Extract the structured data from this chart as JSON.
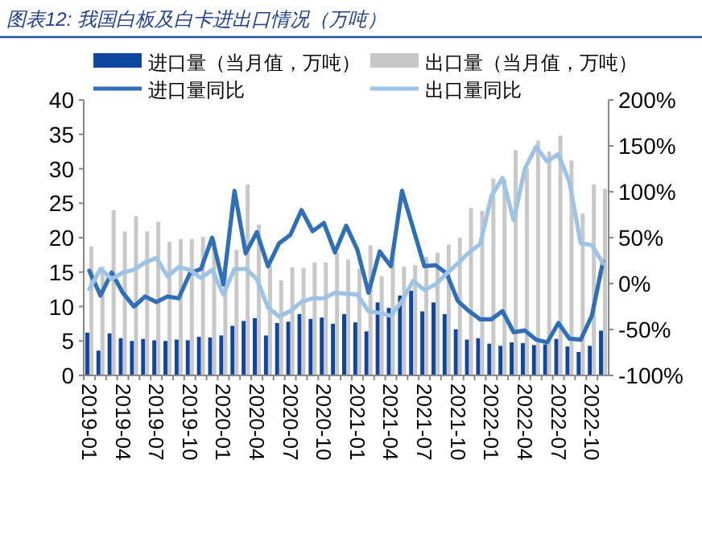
{
  "chart_data": {
    "type": "bar",
    "title": "图表12: 我国白板及白卡进出口情况（万吨）",
    "categories": [
      "2019-01",
      null,
      null,
      "2019-04",
      null,
      null,
      "2019-07",
      null,
      null,
      "2019-10",
      null,
      null,
      "2020-01",
      null,
      null,
      "2020-04",
      null,
      null,
      "2020-07",
      null,
      null,
      "2020-10",
      null,
      null,
      "2021-01",
      null,
      null,
      "2021-04",
      null,
      null,
      "2021-07",
      null,
      null,
      "2021-10",
      null,
      null,
      "2022-01",
      null,
      null,
      "2022-04",
      null,
      null,
      "2022-07",
      null,
      null,
      "2022-10",
      null
    ],
    "series": [
      {
        "name": "进口量（当月值，万吨）",
        "color": "#0f46a0",
        "values": [
          6.2,
          3.6,
          6.1,
          5.4,
          5.0,
          5.3,
          5.1,
          5.0,
          5.2,
          5.1,
          5.6,
          5.5,
          5.8,
          7.2,
          7.9,
          8.3,
          5.8,
          7.6,
          7.8,
          8.9,
          8.2,
          8.4,
          7.5,
          8.9,
          7.7,
          6.4,
          10.6,
          9.8,
          11.6,
          12.3,
          9.3,
          10.6,
          8.9,
          6.7,
          5.2,
          5.4,
          4.6,
          4.3,
          4.8,
          4.7,
          4.4,
          4.5,
          5.3,
          4.2,
          3.4,
          4.3,
          6.5
        ]
      },
      {
        "name": "出口量（当月值，万吨）",
        "color": "#c8c8c8",
        "values": [
          18.7,
          15.8,
          24.0,
          20.9,
          23.1,
          20.9,
          22.3,
          19.4,
          19.8,
          19.8,
          20.1,
          19.7,
          15.0,
          18.2,
          27.7,
          21.9,
          16.0,
          13.8,
          15.7,
          15.6,
          16.4,
          16.4,
          17.8,
          16.8,
          15.5,
          18.9,
          14.4,
          18.4,
          15.8,
          16.0,
          17.2,
          17.8,
          19.0,
          20.0,
          24.3,
          23.9,
          28.6,
          28.4,
          32.7,
          30.0,
          34.1,
          32.5,
          34.8,
          31.2,
          23.5,
          27.7,
          27.1
        ]
      },
      {
        "name": "进口量同比",
        "type": "line",
        "axis": "y2",
        "color": "#2e6fb8",
        "values": [
          14,
          -13,
          12,
          -10,
          -25,
          -14,
          -20,
          -14,
          -16,
          11,
          16,
          50,
          -1,
          101,
          33,
          56,
          19,
          44,
          53,
          80,
          57,
          66,
          34,
          63,
          37,
          -10,
          35,
          19,
          101,
          60,
          19,
          20,
          11,
          -19,
          -30,
          -39,
          -39,
          -30,
          -53,
          -51,
          -61,
          -64,
          -43,
          -60,
          -61,
          -35,
          24
        ]
      },
      {
        "name": "出口量同比",
        "type": "line",
        "axis": "y2",
        "color": "#9dc3e6",
        "values": [
          -6,
          16,
          5,
          12,
          15,
          23,
          28,
          8,
          18,
          15,
          6,
          15,
          -12,
          16,
          16,
          5,
          -26,
          -36,
          -30,
          -20,
          -16,
          -16,
          -10,
          -11,
          -12,
          -30,
          -32,
          -35,
          -19,
          3,
          -7,
          -1,
          11,
          22,
          34,
          43,
          95,
          115,
          69,
          125,
          149,
          133,
          141,
          110,
          44,
          42,
          22
        ]
      }
    ],
    "ylim": [
      0,
      40
    ],
    "yticks": [
      0,
      5,
      10,
      15,
      20,
      25,
      30,
      35,
      40
    ],
    "y2lim": [
      -100,
      200
    ],
    "y2ticks": [
      {
        "value": -100,
        "label": "-100%"
      },
      {
        "value": -50,
        "label": "-50%"
      },
      {
        "value": 0,
        "label": "0%"
      },
      {
        "value": 50,
        "label": "50%"
      },
      {
        "value": 100,
        "label": "100%"
      },
      {
        "value": 150,
        "label": "150%"
      },
      {
        "value": 200,
        "label": "200%"
      }
    ],
    "legend": "top"
  }
}
